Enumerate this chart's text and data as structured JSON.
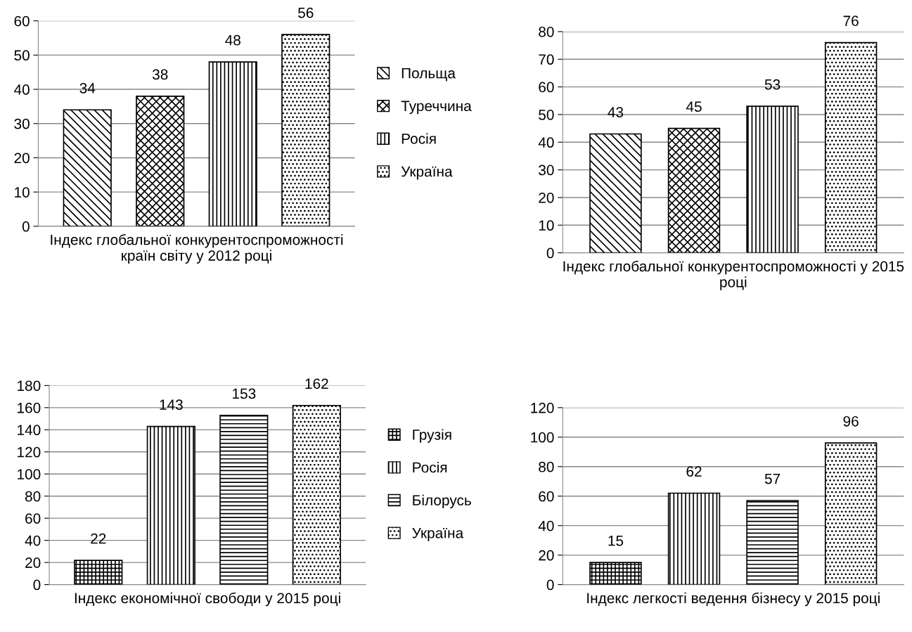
{
  "chart_data": [
    {
      "type": "bar",
      "xlabel": "Індекс глобальної конкурентоспроможності країн світу у 2012 році",
      "categories": [
        null
      ],
      "series": [
        {
          "name": "Польща",
          "color": "#000000",
          "values": [
            34
          ]
        },
        {
          "name": "Туреччина",
          "color": "#000000",
          "values": [
            38
          ]
        },
        {
          "name": "Росія",
          "color": "#000000",
          "values": [
            48
          ]
        },
        {
          "name": "Україна",
          "color": "#000000",
          "values": [
            56
          ]
        }
      ],
      "ylim": [
        0,
        60
      ],
      "yticks": [
        0,
        10,
        20,
        30,
        40,
        50,
        60
      ],
      "grid": "y",
      "legend": "right",
      "data_labels": true
    },
    {
      "type": "bar",
      "xlabel": "Індекс глобальної конкурентоспроможності у 2015 році",
      "categories": [
        null
      ],
      "series": [
        {
          "color": "#000000",
          "values": [
            43
          ]
        },
        {
          "color": "#000000",
          "values": [
            45
          ]
        },
        {
          "color": "#000000",
          "values": [
            53
          ]
        },
        {
          "color": "#000000",
          "values": [
            76
          ]
        }
      ],
      "ylim": [
        0,
        80
      ],
      "yticks": [
        0,
        10,
        20,
        30,
        40,
        50,
        60,
        70,
        80
      ],
      "grid": "y",
      "data_labels": true
    },
    {
      "type": "bar",
      "xlabel": "Індекс економічної свободи у 2015 році",
      "categories": [
        null
      ],
      "series": [
        {
          "name": "Грузія",
          "color": "#000000",
          "values": [
            22
          ]
        },
        {
          "name": "Росія",
          "color": "#000000",
          "values": [
            143
          ]
        },
        {
          "name": "Білорусь",
          "color": "#000000",
          "values": [
            153
          ]
        },
        {
          "name": "Україна",
          "color": "#000000",
          "values": [
            162
          ]
        }
      ],
      "ylim": [
        0,
        180
      ],
      "yticks": [
        0,
        20,
        40,
        60,
        80,
        100,
        120,
        140,
        160,
        180
      ],
      "grid": "y",
      "legend": "right",
      "data_labels": true
    },
    {
      "type": "bar",
      "xlabel": "Індекс легкості ведення бізнесу у 2015 році",
      "categories": [
        null
      ],
      "series": [
        {
          "color": "#000000",
          "values": [
            15
          ]
        },
        {
          "color": "#000000",
          "values": [
            62
          ]
        },
        {
          "color": "#000000",
          "values": [
            57
          ]
        },
        {
          "color": "#000000",
          "values": [
            96
          ]
        }
      ],
      "ylim": [
        0,
        120
      ],
      "yticks": [
        0,
        20,
        40,
        60,
        80,
        100,
        120
      ],
      "grid": "y",
      "data_labels": true
    }
  ]
}
